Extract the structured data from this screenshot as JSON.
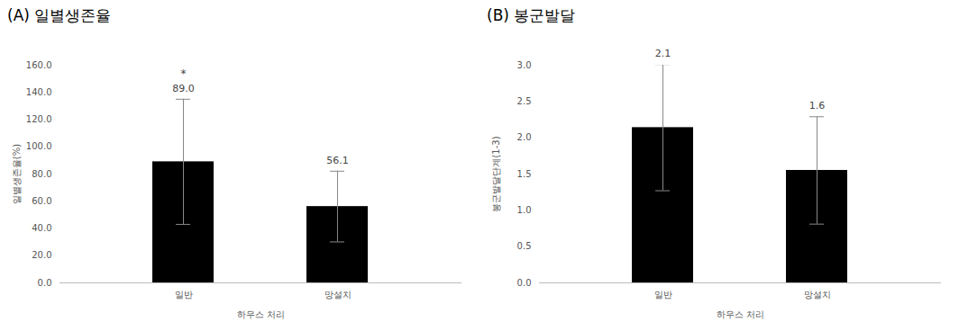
{
  "chart_data": [
    {
      "type": "bar",
      "title": "(A) 일별생존율",
      "x_label": "하우스 처리",
      "y_label": "일별생존율(%)",
      "categories": [
        "일반",
        "망설치"
      ],
      "values": [
        89.0,
        56.1
      ],
      "value_labels": [
        "89.0",
        "56.1"
      ],
      "errors": [
        46,
        26
      ],
      "color": "#000000",
      "ylim": [
        0,
        160
      ],
      "yticks": [
        {
          "value": 0,
          "label": "0.0"
        },
        {
          "value": 20,
          "label": "20.0"
        },
        {
          "value": 40,
          "label": "40.0"
        },
        {
          "value": 60,
          "label": "60.0"
        },
        {
          "value": 80,
          "label": "80.0"
        },
        {
          "value": 100,
          "label": "100.0"
        },
        {
          "value": 120,
          "label": "120.0"
        },
        {
          "value": 140,
          "label": "140.0"
        },
        {
          "value": 160,
          "label": "160.0"
        }
      ],
      "annotations": [
        {
          "text": "*",
          "category": "일반"
        }
      ],
      "grid": false,
      "data_labels": true
    },
    {
      "type": "bar",
      "title": "(B) 봉군발달",
      "x_label": "하우스 처리",
      "y_label": "봉군발달단계(1-3)",
      "categories": [
        "일반",
        "망설치"
      ],
      "values": [
        2.14,
        1.55
      ],
      "value_labels": [
        "2.1",
        "1.6"
      ],
      "errors": [
        0.87,
        0.74
      ],
      "color": "#000000",
      "ylim": [
        0,
        3
      ],
      "yticks": [
        {
          "value": 0,
          "label": "0.0"
        },
        {
          "value": 0.5,
          "label": "0.5"
        },
        {
          "value": 1,
          "label": "1.0"
        },
        {
          "value": 1.5,
          "label": "1.5"
        },
        {
          "value": 2,
          "label": "2.0"
        },
        {
          "value": 2.5,
          "label": "2.5"
        },
        {
          "value": 3,
          "label": "3.0"
        }
      ],
      "grid": false,
      "data_labels": true
    }
  ]
}
